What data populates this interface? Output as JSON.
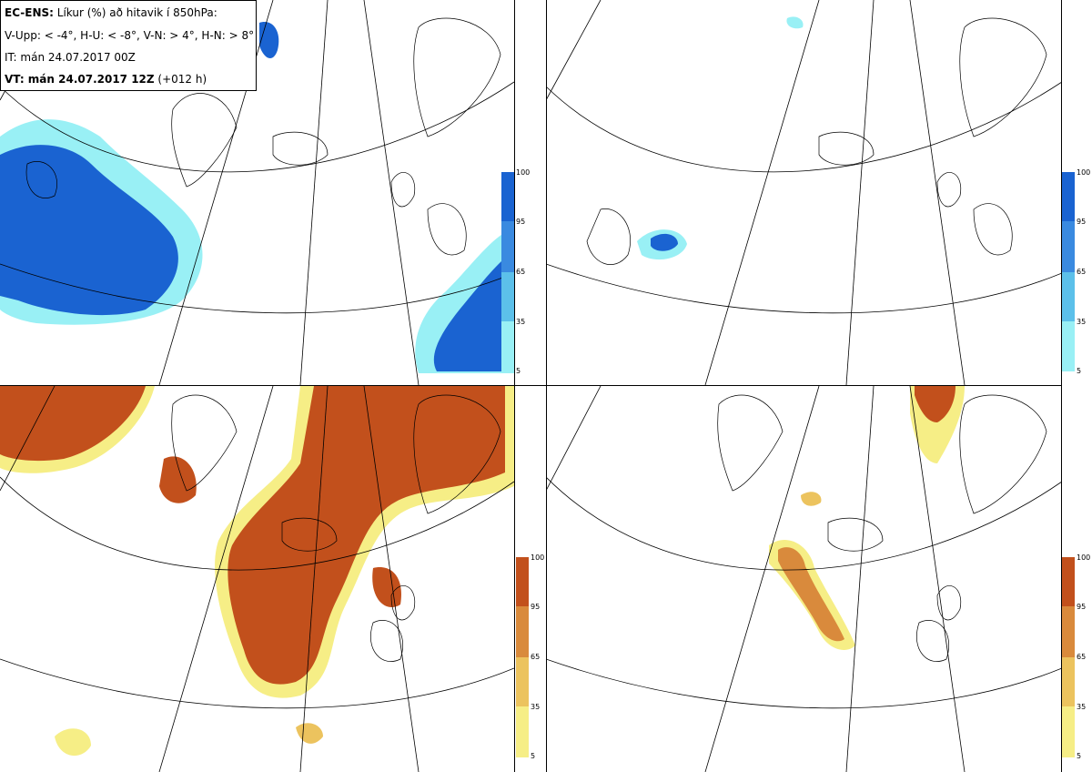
{
  "header": {
    "line1_bold": "EC-ENS:",
    "line1_rest": " Líkur (%) að hitavik í 850hPa:",
    "line2": "V-Upp: < -4°, H-U: < -8°, V-N: > 4°, H-N: > 8°",
    "line3": "IT: mán 24.07.2017 00Z",
    "line4_bold": "VT: mán 24.07.2017 12Z",
    "line4_rest": " (+012 h)"
  },
  "panels": [
    {
      "id": "V-Upp",
      "scheme": "blue"
    },
    {
      "id": "H-U",
      "scheme": "blue"
    },
    {
      "id": "V-N",
      "scheme": "orange"
    },
    {
      "id": "H-N",
      "scheme": "orange"
    }
  ],
  "colorbar": {
    "ticks": [
      "100",
      "95",
      "65",
      "35",
      "5"
    ],
    "blue_colors": [
      "#1a63d1",
      "#3a8ae0",
      "#5cc0ea",
      "#99f0f5",
      "#d8fbfb"
    ],
    "orange_colors": [
      "#c2501c",
      "#d98a3c",
      "#ecc35e",
      "#f6ee86",
      "#fdfbc8"
    ]
  }
}
